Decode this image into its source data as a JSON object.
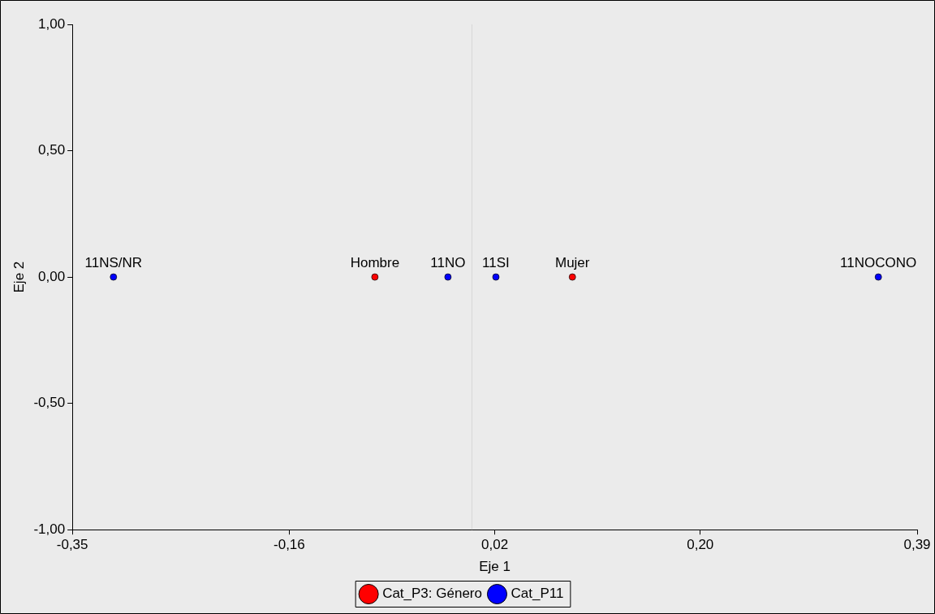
{
  "chart_data": {
    "type": "scatter",
    "xlabel": "Eje 1",
    "ylabel": "Eje 2",
    "xlim": [
      -0.35,
      0.39
    ],
    "xticks": [
      {
        "value": -0.35,
        "label": "-0,35"
      },
      {
        "value": -0.16,
        "label": "-0,16"
      },
      {
        "value": 0.02,
        "label": "0,02"
      },
      {
        "value": 0.2,
        "label": "0,20"
      },
      {
        "value": 0.39,
        "label": "0,39"
      }
    ],
    "ylim": [
      -1,
      1
    ],
    "yticks": [
      {
        "value": -1,
        "label": "-1,00"
      },
      {
        "value": -0.5,
        "label": "-0,50"
      },
      {
        "value": 0,
        "label": "0,00"
      },
      {
        "value": 0.5,
        "label": "0,50"
      },
      {
        "value": 1,
        "label": "1,00"
      }
    ],
    "series": [
      {
        "name": "Cat_P3: Género",
        "color": "#ff0000",
        "x": [
          -0.085,
          0.088
        ],
        "values": [
          0,
          0
        ]
      },
      {
        "name": "Cat_P11",
        "color": "#0000ff",
        "x": [
          -0.314,
          -0.021,
          0.021,
          0.356
        ],
        "values": [
          0,
          0,
          0,
          0
        ]
      }
    ],
    "annotations": [
      {
        "text": "Hombre",
        "x": -0.085,
        "y": 0
      },
      {
        "text": "Mujer",
        "x": 0.088,
        "y": 0
      },
      {
        "text": "11NS/NR",
        "x": -0.314,
        "y": 0
      },
      {
        "text": "11NO",
        "x": -0.021,
        "y": 0
      },
      {
        "text": "11SI",
        "x": 0.021,
        "y": 0
      },
      {
        "text": "11NOCONO",
        "x": 0.356,
        "y": 0
      }
    ],
    "ref_lines": [
      {
        "axis": "x",
        "value": 0,
        "color": "#d6d6d6"
      }
    ],
    "grid": false,
    "legend": "bottom",
    "marker": "circle"
  }
}
